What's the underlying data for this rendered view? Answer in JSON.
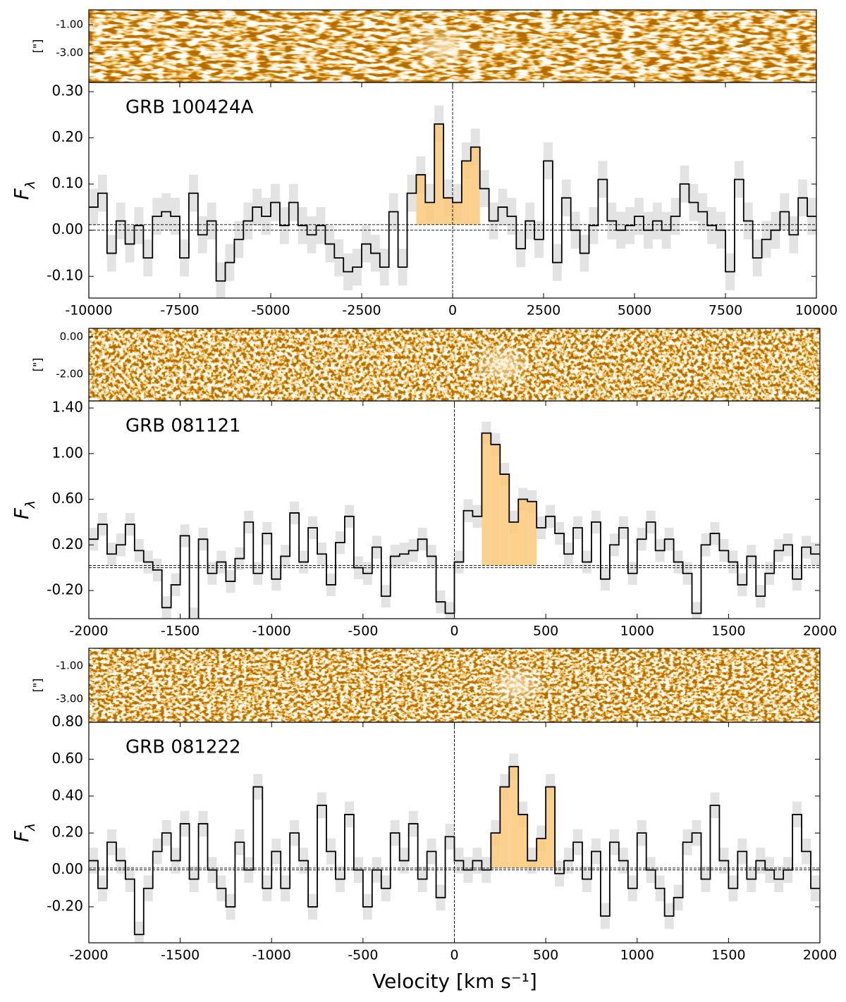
{
  "chart_data": [
    {
      "type": "step",
      "title": "GRB 100424A",
      "ylabel": "Fλ",
      "image_ylabel": "[\"]",
      "image_ylim": [
        -5.1,
        0.05
      ],
      "image_yticks": [
        {
          "value": -1,
          "label": "-1.00"
        },
        {
          "value": -3,
          "label": "-3.00"
        }
      ],
      "xlim": [
        -10000,
        10000
      ],
      "xticks": [
        -10000,
        -7500,
        -5000,
        -2500,
        0,
        2500,
        5000,
        7500,
        10000
      ],
      "ylim": [
        -0.147,
        0.32
      ],
      "yticks": [
        {
          "value": -0.1,
          "label": "-0.10"
        },
        {
          "value": 0,
          "label": "0.00"
        },
        {
          "value": 0.1,
          "label": "0.10"
        },
        {
          "value": 0.2,
          "label": "0.20"
        },
        {
          "value": 0.3,
          "label": "0.30"
        }
      ],
      "x": [
        -9875,
        -9625,
        -9375,
        -9125,
        -8875,
        -8625,
        -8375,
        -8125,
        -7875,
        -7625,
        -7375,
        -7125,
        -6875,
        -6625,
        -6375,
        -6125,
        -5875,
        -5625,
        -5375,
        -5125,
        -4875,
        -4625,
        -4375,
        -4125,
        -3875,
        -3625,
        -3375,
        -3125,
        -2875,
        -2625,
        -2375,
        -2125,
        -1875,
        -1625,
        -1375,
        -1125,
        -875,
        -625,
        -375,
        -125,
        125,
        375,
        625,
        875,
        1125,
        1375,
        1625,
        1875,
        2125,
        2375,
        2625,
        2875,
        3125,
        3375,
        3625,
        3875,
        4125,
        4375,
        4625,
        4875,
        5125,
        5375,
        5625,
        5875,
        6125,
        6375,
        6625,
        6875,
        7125,
        7375,
        7625,
        7875,
        8125,
        8375,
        8625,
        8875,
        9125,
        9375,
        9625,
        9875
      ],
      "values": [
        0.05,
        0.08,
        -0.05,
        0.02,
        -0.03,
        0.01,
        -0.06,
        0.03,
        0.04,
        0.03,
        -0.06,
        0.08,
        -0.01,
        0.02,
        -0.11,
        -0.07,
        -0.02,
        0.02,
        0.05,
        0.03,
        0.06,
        0.01,
        0.06,
        0.01,
        -0.01,
        0.01,
        -0.03,
        -0.06,
        -0.09,
        -0.08,
        -0.03,
        -0.05,
        -0.08,
        0.04,
        -0.08,
        0.08,
        0.12,
        0.06,
        0.23,
        0.07,
        0.06,
        0.15,
        0.18,
        0.09,
        0.02,
        0.05,
        0.03,
        -0.04,
        0.02,
        -0.02,
        0.15,
        -0.07,
        0.07,
        0.0,
        -0.05,
        0.01,
        0.11,
        0.02,
        0.0,
        0.01,
        0.03,
        0.0,
        0.02,
        0.0,
        0.03,
        0.1,
        0.06,
        0.04,
        0.01,
        0.0,
        -0.09,
        0.11,
        0.02,
        -0.06,
        -0.02,
        0.0,
        0.04,
        -0.01,
        0.07,
        0.03
      ],
      "error": 0.04,
      "hlines": [
        0,
        0.012
      ],
      "vline": 0,
      "highlight": [
        -1000,
        750
      ],
      "color": "#000000",
      "fill_color": "#fbc97a",
      "band_color": "#d9d9d9"
    },
    {
      "type": "step",
      "title": "GRB 081121",
      "ylabel": "Fλ",
      "image_ylabel": "[\"]",
      "image_ylim": [
        -3.43,
        0.45
      ],
      "image_yticks": [
        {
          "value": 0,
          "label": "0.00"
        },
        {
          "value": -2,
          "label": "-2.00"
        }
      ],
      "xlim": [
        -2000,
        2000
      ],
      "xticks": [
        -2000,
        -1500,
        -1000,
        -500,
        0,
        500,
        1000,
        1500,
        2000
      ],
      "ylim": [
        -0.447,
        1.462
      ],
      "yticks": [
        {
          "value": -0.2,
          "label": "-0.20"
        },
        {
          "value": 0.2,
          "label": "0.20"
        },
        {
          "value": 0.6,
          "label": "0.60"
        },
        {
          "value": 1.0,
          "label": "1.00"
        },
        {
          "value": 1.4,
          "label": "1.40"
        }
      ],
      "x": [
        -1975,
        -1925,
        -1875,
        -1825,
        -1775,
        -1725,
        -1675,
        -1625,
        -1575,
        -1525,
        -1475,
        -1425,
        -1375,
        -1325,
        -1275,
        -1225,
        -1175,
        -1125,
        -1075,
        -1025,
        -975,
        -925,
        -875,
        -825,
        -775,
        -725,
        -675,
        -625,
        -575,
        -525,
        -475,
        -425,
        -375,
        -325,
        -275,
        -225,
        -175,
        -125,
        -75,
        -25,
        25,
        75,
        125,
        175,
        225,
        275,
        325,
        375,
        425,
        475,
        525,
        575,
        625,
        675,
        725,
        775,
        825,
        875,
        925,
        975,
        1025,
        1075,
        1125,
        1175,
        1225,
        1275,
        1325,
        1375,
        1425,
        1475,
        1525,
        1575,
        1625,
        1675,
        1725,
        1775,
        1825,
        1875,
        1925,
        1975
      ],
      "values": [
        0.25,
        0.38,
        0.12,
        0.2,
        0.38,
        0.15,
        0.05,
        -0.02,
        -0.35,
        -0.15,
        0.28,
        -0.45,
        0.25,
        -0.05,
        0.05,
        -0.12,
        0.08,
        0.4,
        -0.05,
        0.3,
        -0.1,
        0.1,
        0.48,
        0.05,
        0.35,
        0.12,
        -0.15,
        0.22,
        0.45,
        0.0,
        -0.05,
        0.18,
        -0.25,
        0.1,
        0.12,
        0.15,
        0.25,
        0.1,
        -0.3,
        -0.4,
        0.05,
        0.5,
        0.45,
        1.18,
        1.08,
        0.82,
        0.4,
        0.6,
        0.58,
        0.35,
        0.45,
        0.3,
        0.12,
        0.35,
        0.05,
        0.4,
        -0.1,
        0.2,
        0.35,
        -0.05,
        0.25,
        0.4,
        0.15,
        0.25,
        0.05,
        -0.05,
        -0.4,
        0.2,
        0.3,
        0.15,
        0.05,
        -0.15,
        0.1,
        -0.25,
        -0.05,
        0.15,
        0.2,
        -0.1,
        0.18,
        0.12
      ],
      "error": 0.1,
      "hlines": [
        0,
        0.02
      ],
      "vline": 0,
      "highlight": [
        130,
        460
      ],
      "color": "#000000",
      "fill_color": "#fbc97a",
      "band_color": "#d9d9d9"
    },
    {
      "type": "step",
      "title": "GRB 081222",
      "ylabel": "Fλ",
      "image_ylabel": "[\"]",
      "image_ylim": [
        -4.4,
        0.06
      ],
      "image_yticks": [
        {
          "value": -1,
          "label": "-1.00"
        },
        {
          "value": -3,
          "label": "-3.00"
        }
      ],
      "xlim": [
        -2000,
        2000
      ],
      "xticks": [
        -2000,
        -1500,
        -1000,
        -500,
        0,
        500,
        1000,
        1500,
        2000
      ],
      "ylim": [
        -0.395,
        0.8
      ],
      "yticks": [
        {
          "value": -0.2,
          "label": "-0.20"
        },
        {
          "value": 0,
          "label": "0.00"
        },
        {
          "value": 0.2,
          "label": "0.20"
        },
        {
          "value": 0.4,
          "label": "0.40"
        },
        {
          "value": 0.6,
          "label": "0.60"
        },
        {
          "value": 0.8,
          "label": "0.80"
        }
      ],
      "x": [
        -1975,
        -1925,
        -1875,
        -1825,
        -1775,
        -1725,
        -1675,
        -1625,
        -1575,
        -1525,
        -1475,
        -1425,
        -1375,
        -1325,
        -1275,
        -1225,
        -1175,
        -1125,
        -1075,
        -1025,
        -975,
        -925,
        -875,
        -825,
        -775,
        -725,
        -675,
        -625,
        -575,
        -525,
        -475,
        -425,
        -375,
        -325,
        -275,
        -225,
        -175,
        -125,
        -75,
        -25,
        25,
        75,
        125,
        175,
        225,
        275,
        325,
        375,
        425,
        475,
        525,
        575,
        625,
        675,
        725,
        775,
        825,
        875,
        925,
        975,
        1025,
        1075,
        1125,
        1175,
        1225,
        1275,
        1325,
        1375,
        1425,
        1475,
        1525,
        1575,
        1625,
        1675,
        1725,
        1775,
        1825,
        1875,
        1925,
        1975
      ],
      "values": [
        0.05,
        -0.1,
        0.15,
        0.05,
        -0.05,
        -0.35,
        -0.1,
        0.1,
        0.2,
        0.05,
        0.25,
        -0.05,
        0.25,
        0.0,
        -0.1,
        -0.2,
        0.15,
        0.0,
        0.45,
        -0.1,
        0.1,
        -0.1,
        0.2,
        0.05,
        -0.2,
        0.35,
        0.1,
        -0.05,
        0.3,
        0.0,
        -0.2,
        0.0,
        -0.1,
        0.2,
        0.05,
        0.25,
        -0.05,
        0.1,
        -0.15,
        0.18,
        0.05,
        0.0,
        0.05,
        0.0,
        0.2,
        0.45,
        0.56,
        0.3,
        0.05,
        0.17,
        0.45,
        -0.02,
        0.05,
        0.15,
        -0.05,
        0.1,
        -0.25,
        0.15,
        0.05,
        -0.1,
        0.2,
        0.0,
        -0.1,
        -0.25,
        -0.15,
        0.15,
        0.2,
        -0.05,
        0.35,
        0.05,
        -0.1,
        0.1,
        -0.05,
        0.05,
        0.0,
        -0.05,
        0.0,
        0.3,
        0.1,
        -0.1
      ],
      "error": 0.07,
      "hlines": [
        0,
        0.01
      ],
      "vline": 0,
      "highlight": [
        200,
        550
      ],
      "color": "#000000",
      "fill_color": "#fbc97a",
      "band_color": "#d9d9d9"
    }
  ],
  "xlabel": "Velocity [km s⁻¹]"
}
